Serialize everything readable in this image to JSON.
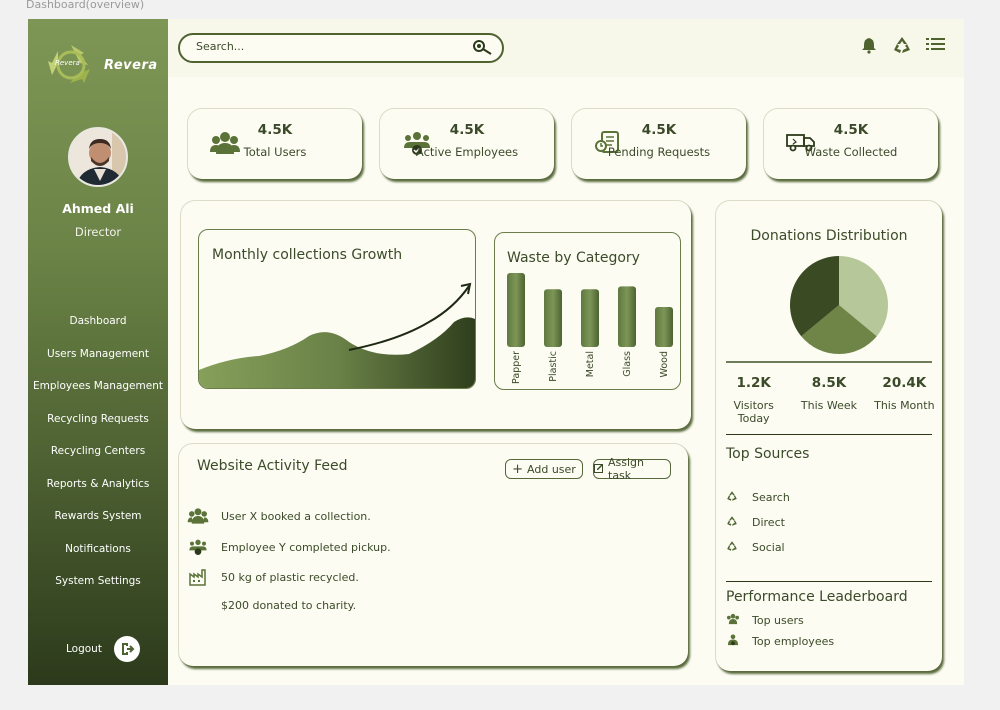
{
  "frame_label": "Dashboard(overview)",
  "brand": {
    "name": "Revera",
    "logo_text": "Revera"
  },
  "user": {
    "name": "Ahmed Ali",
    "role": "Director"
  },
  "nav": [
    {
      "label": "Dashboard"
    },
    {
      "label": "Users Management"
    },
    {
      "label": "Employees Management"
    },
    {
      "label": "Recycling Requests"
    },
    {
      "label": "Recycling Centers"
    },
    {
      "label": "Reports & Analytics"
    },
    {
      "label": "Rewards System"
    },
    {
      "label": "Notifications"
    },
    {
      "label": "System Settings"
    }
  ],
  "logout_label": "Logout",
  "search": {
    "placeholder": "Search..."
  },
  "stats": [
    {
      "value": "4.5K",
      "label": "Total Users",
      "icon": "users-icon"
    },
    {
      "value": "4.5K",
      "label": "Active Employees",
      "icon": "employees-icon"
    },
    {
      "value": "4.5K",
      "label": "Pending Requests",
      "icon": "requests-icon"
    },
    {
      "value": "4.5K",
      "label": "Waste Collected",
      "icon": "truck-icon"
    }
  ],
  "growth_chart": {
    "title": "Monthly collections Growth"
  },
  "chart_data": {
    "type": "bar",
    "title": "Waste by Category",
    "categories": [
      "Papper",
      "Plastic",
      "Metal",
      "Glass",
      "Wood"
    ],
    "values": [
      100,
      78,
      78,
      82,
      54
    ],
    "ylim": [
      0,
      100
    ],
    "grid": false
  },
  "donations": {
    "title": "Donations Distribution",
    "pie_slices": [
      0.36,
      0.28,
      0.36
    ],
    "pie_colors": [
      "#b6c79a",
      "#6e8547",
      "#3a4a22"
    ],
    "stats": [
      {
        "value": "1.2K",
        "label": "Visitors Today"
      },
      {
        "value": "8.5K",
        "label": "This Week"
      },
      {
        "value": "20.4K",
        "label": "This Month"
      }
    ],
    "sources_title": "Top Sources",
    "sources": [
      "Search",
      "Direct",
      "Social"
    ],
    "leaderboard_title": "Performance Leaderboard",
    "leaderboard": [
      "Top users",
      "Top employees"
    ]
  },
  "feed": {
    "title": "Website Activity Feed",
    "add_user": "Add user",
    "assign_task": "Assign task",
    "items": [
      {
        "text": "User X booked a collection.",
        "icon": "users-icon"
      },
      {
        "text": "Employee Y completed pickup.",
        "icon": "employee-check-icon"
      },
      {
        "text": "50 kg of plastic recycled.",
        "icon": "factory-icon"
      },
      {
        "text": "$200 donated to charity.",
        "icon": ""
      }
    ]
  },
  "colors": {
    "accent": "#4e6330",
    "dark": "#2c3a1b",
    "light": "#fcfcf3"
  }
}
